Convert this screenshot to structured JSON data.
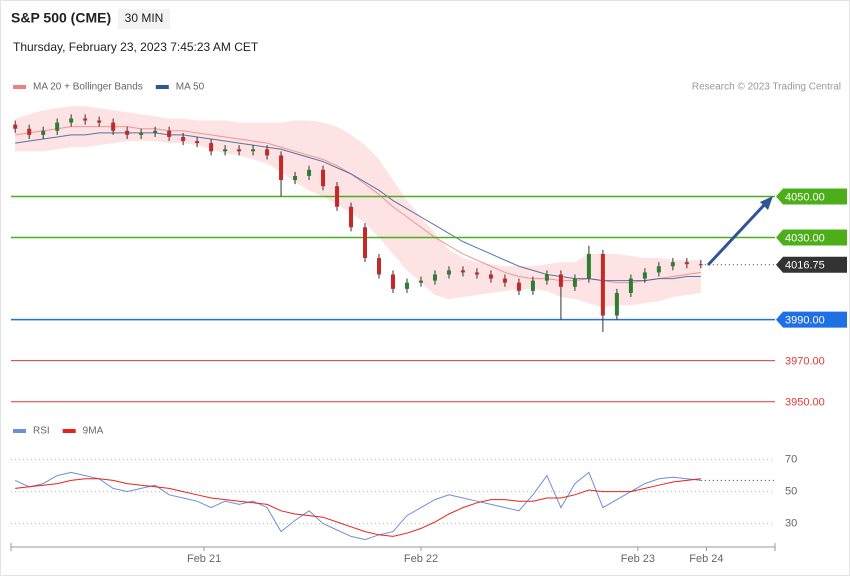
{
  "header": {
    "title": "S&P 500 (CME)",
    "interval": "30 MIN",
    "timestamp": "Thursday, February 23, 2023 7:45:23 AM CET"
  },
  "chart_data": [
    {
      "type": "candlestick",
      "credit": "Research © 2023 Trading Central",
      "up_color": "#2e7d32",
      "down_color": "#c62828",
      "xlim": [
        -0.3,
        54.3
      ],
      "ylim": [
        3945,
        4097
      ],
      "open": [
        4085,
        4083,
        4080,
        4082,
        4086,
        4088,
        4087,
        4086,
        4082,
        4080,
        4081,
        4082,
        4079,
        4077,
        4076,
        4072,
        4073,
        4072,
        4073,
        4070,
        4058,
        4060,
        4063,
        4055,
        4045,
        4035,
        4020,
        4012,
        4005,
        4008,
        4009,
        4012,
        4014,
        4013,
        4012,
        4010,
        4008,
        4004,
        4009,
        4012,
        4006,
        4010,
        4022,
        3992,
        4003,
        4010,
        4013,
        4016,
        4018,
        4017
      ],
      "high": [
        4087,
        4085,
        4084,
        4088,
        4090,
        4090,
        4089,
        4088,
        4084,
        4083,
        4084,
        4084,
        4081,
        4079,
        4078,
        4075,
        4075,
        4075,
        4075,
        4072,
        4062,
        4065,
        4065,
        4057,
        4047,
        4037,
        4022,
        4014,
        4010,
        4011,
        4014,
        4016,
        4016,
        4015,
        4014,
        4012,
        4010,
        4011,
        4014,
        4014,
        4012,
        4026,
        4024,
        4005,
        4012,
        4015,
        4018,
        4020,
        4020,
        4019
      ],
      "low": [
        4081,
        4078,
        4078,
        4080,
        4084,
        4085,
        4084,
        4080,
        4078,
        4078,
        4079,
        4077,
        4075,
        4074,
        4070,
        4070,
        4070,
        4070,
        4068,
        4050,
        4056,
        4058,
        4053,
        4043,
        4033,
        4018,
        4010,
        4003,
        4003,
        4006,
        4007,
        4010,
        4011,
        4010,
        4008,
        4006,
        4002,
        4002,
        4007,
        3990,
        4004,
        4008,
        3984,
        3990,
        4001,
        4008,
        4011,
        4014,
        4015,
        4015
      ],
      "close": [
        4083,
        4080,
        4082,
        4086,
        4088,
        4087,
        4086,
        4082,
        4080,
        4081,
        4082,
        4079,
        4077,
        4076,
        4072,
        4073,
        4072,
        4073,
        4070,
        4058,
        4060,
        4063,
        4055,
        4045,
        4035,
        4020,
        4012,
        4005,
        4008,
        4009,
        4012,
        4014,
        4013,
        4012,
        4010,
        4008,
        4004,
        4009,
        4012,
        4006,
        4010,
        4022,
        3992,
        4003,
        4010,
        4013,
        4016,
        4018,
        4017,
        4016.75
      ],
      "series": [
        {
          "name": "MA 20 + Bollinger Bands",
          "color": "#f08080",
          "band_color": "#fde3e3",
          "values": [
            4080,
            4081,
            4082,
            4083,
            4084,
            4084,
            4084,
            4084,
            4084,
            4083,
            4083,
            4082,
            4082,
            4081,
            4080,
            4079,
            4078,
            4077,
            4076,
            4074,
            4072,
            4070,
            4068,
            4065,
            4061,
            4056,
            4051,
            4045,
            4040,
            4035,
            4030,
            4026,
            4022,
            4019,
            4016,
            4013,
            4011,
            4010,
            4010,
            4009,
            4009,
            4010,
            4009,
            4008,
            4008,
            4009,
            4010,
            4011,
            4012,
            4013
          ],
          "upper": [
            4088,
            4090,
            4092,
            4093,
            4094,
            4094,
            4093,
            4092,
            4091,
            4090,
            4089,
            4088,
            4088,
            4087,
            4087,
            4087,
            4086,
            4086,
            4086,
            4086,
            4087,
            4087,
            4086,
            4084,
            4080,
            4075,
            4068,
            4058,
            4048,
            4040,
            4032,
            4024,
            4020,
            4018,
            4017,
            4016,
            4016,
            4016,
            4017,
            4018,
            4018,
            4022,
            4022,
            4022,
            4021,
            4020,
            4020,
            4019,
            4019,
            4019
          ],
          "lower": [
            4072,
            4072,
            4072,
            4073,
            4074,
            4074,
            4075,
            4076,
            4077,
            4077,
            4077,
            4076,
            4076,
            4075,
            4073,
            4071,
            4070,
            4068,
            4066,
            4062,
            4057,
            4053,
            4050,
            4046,
            4042,
            4037,
            4030,
            4022,
            4014,
            4008,
            4002,
            4000,
            4001,
            4002,
            4003,
            4004,
            4005,
            4005,
            4004,
            4001,
            4000,
            3998,
            3996,
            3997,
            3997,
            3998,
            3999,
            4001,
            4002,
            4003
          ]
        },
        {
          "name": "MA 50",
          "color": "#2f5597",
          "values": [
            4076,
            4077,
            4078,
            4079,
            4080,
            4080,
            4081,
            4081,
            4081,
            4081,
            4081,
            4080,
            4080,
            4079,
            4078,
            4077,
            4076,
            4075,
            4074,
            4073,
            4071,
            4069,
            4067,
            4064,
            4061,
            4057,
            4053,
            4048,
            4044,
            4040,
            4036,
            4032,
            4028,
            4025,
            4022,
            4019,
            4016,
            4014,
            4012,
            4011,
            4010,
            4010,
            4009,
            4009,
            4009,
            4009,
            4010,
            4010,
            4011,
            4011
          ]
        }
      ],
      "levels": [
        {
          "value": 4050,
          "label": "4050.00",
          "color": "#4caf1a",
          "style": "box"
        },
        {
          "value": 4030,
          "label": "4030.00",
          "color": "#4caf1a",
          "style": "box"
        },
        {
          "value": 3990,
          "label": "3990.00",
          "color": "#1f6fe5",
          "style": "box"
        },
        {
          "value": 3970,
          "label": "3970.00",
          "color": "#e53935",
          "style": "text"
        },
        {
          "value": 3950,
          "label": "3950.00",
          "color": "#e53935",
          "style": "text"
        }
      ],
      "last_price": 4016.75
    },
    {
      "type": "line",
      "xlim": [
        -0.3,
        54.3
      ],
      "ylim": [
        16,
        76
      ],
      "yticks": [
        30,
        50,
        70
      ],
      "xticks": [
        {
          "value": 13.5,
          "label": "Feb 21"
        },
        {
          "value": 29,
          "label": "Feb 22"
        },
        {
          "value": 44.5,
          "label": "Feb 23"
        },
        {
          "value": 49.4,
          "label": "Feb 24"
        }
      ],
      "series": [
        {
          "name": "RSI",
          "color": "#6d8fd8",
          "values": [
            57,
            53,
            55,
            60,
            62,
            60,
            58,
            52,
            50,
            52,
            54,
            48,
            46,
            44,
            40,
            44,
            42,
            44,
            40,
            25,
            32,
            38,
            30,
            26,
            22,
            20,
            23,
            25,
            35,
            40,
            45,
            48,
            46,
            44,
            42,
            40,
            38,
            48,
            60,
            40,
            55,
            62,
            40,
            45,
            50,
            55,
            58,
            59,
            58,
            57
          ]
        },
        {
          "name": "9MA",
          "color": "#e8221b",
          "values": [
            52,
            53,
            54,
            55,
            57,
            58,
            58,
            57,
            55,
            54,
            53,
            52,
            50,
            48,
            46,
            45,
            44,
            43,
            42,
            38,
            36,
            35,
            34,
            31,
            28,
            25,
            23,
            22,
            24,
            27,
            31,
            36,
            40,
            43,
            45,
            45,
            44,
            44,
            46,
            46,
            48,
            51,
            50,
            50,
            50,
            52,
            54,
            56,
            57,
            58
          ]
        }
      ]
    }
  ]
}
